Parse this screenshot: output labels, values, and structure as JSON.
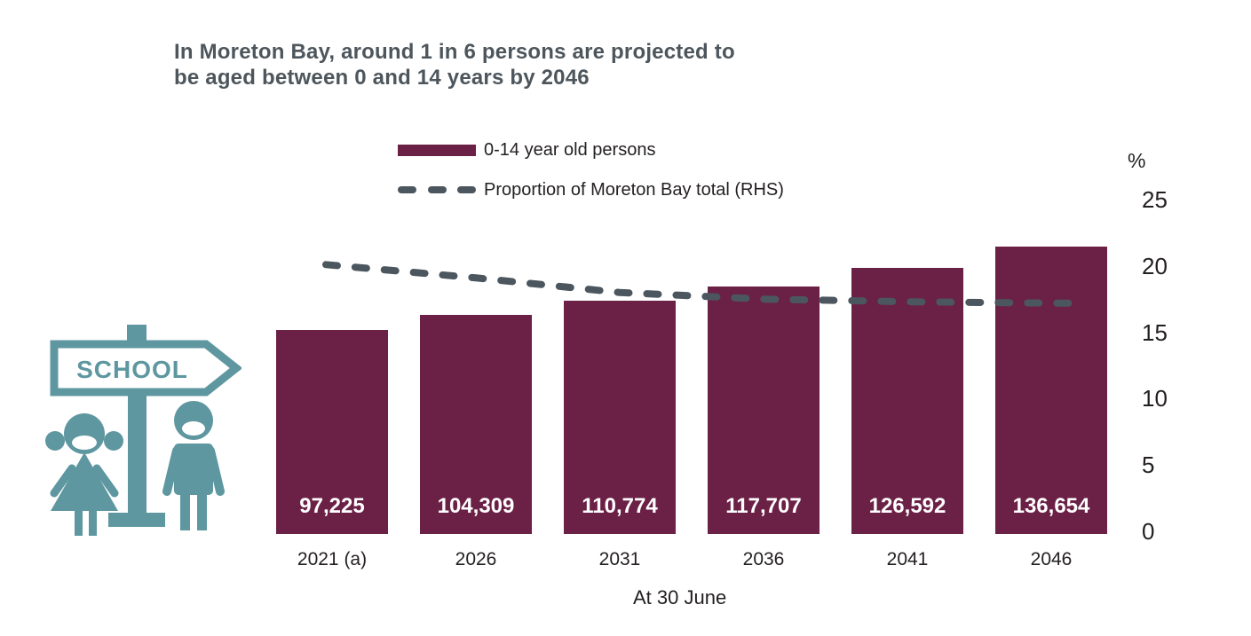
{
  "title": {
    "line1": "In Moreton Bay, around 1 in 6 persons are projected to",
    "line2": "be aged between 0 and 14 years by 2046"
  },
  "legend": {
    "bar_label": "0-14 year old persons",
    "line_label": "Proportion of Moreton Bay total (RHS)"
  },
  "chart_data": {
    "type": "bar",
    "categories": [
      "2021 (a)",
      "2026",
      "2031",
      "2036",
      "2041",
      "2046"
    ],
    "series": [
      {
        "name": "0-14 year old persons",
        "type": "bar",
        "axis": "left",
        "values": [
          97225,
          104309,
          110774,
          117707,
          126592,
          136654
        ],
        "value_labels": [
          "97,225",
          "104,309",
          "110,774",
          "117,707",
          "126,592",
          "136,654"
        ]
      },
      {
        "name": "Proportion of Moreton Bay total (RHS)",
        "type": "dashed-line",
        "axis": "right",
        "values": [
          20.1,
          19.1,
          18.0,
          17.5,
          17.3,
          17.2
        ]
      }
    ],
    "right_axis": {
      "unit_label": "%",
      "ticks": [
        25,
        20,
        15,
        10,
        5,
        0
      ],
      "range": [
        0,
        25
      ]
    },
    "xlabel": "At 30 June",
    "grid": false,
    "legend_position": "top-center"
  },
  "icon": {
    "sign_text": "SCHOOL"
  },
  "colors": {
    "bar": "#6B2046",
    "dashed_line": "#4C565E",
    "title_text": "#4D565C",
    "body_text": "#231F20",
    "bar_value_text": "#FFFFFF",
    "icon_teal": "#5E97A0"
  }
}
